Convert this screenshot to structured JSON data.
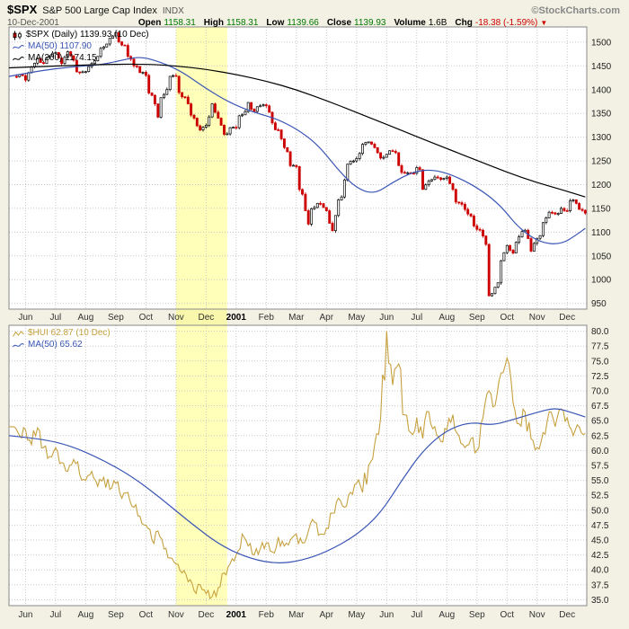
{
  "header": {
    "symbol": "$SPX",
    "name": "S&P 500 Large Cap Index",
    "exchange": "INDX",
    "brand": "©StockCharts.com",
    "date": "10-Dec-2001",
    "quote": {
      "open_label": "Open",
      "open": "1158.31",
      "high_label": "High",
      "high": "1158.31",
      "low_label": "Low",
      "low": "1139.66",
      "close_label": "Close",
      "close": "1139.93",
      "volume_label": "Volume",
      "volume": "1.6B",
      "chg_label": "Chg",
      "chg": "-18.38 (-1.59%)",
      "chg_dir": "▼"
    }
  },
  "colors": {
    "page_bg": "#F2F1E3",
    "up": "#000000",
    "down": "#CC0000",
    "ma50": "#3A55B4",
    "ma200": "#000000",
    "hui": "#C6A13F",
    "band": "#FFFF66",
    "grid": "#C8C8C8",
    "border": "#888888",
    "value_green": "#007700",
    "value_red": "#CC0000"
  },
  "chart_data": [
    {
      "type": "candlestick",
      "symbol": "$SPX",
      "title": "$SPX (Daily) 1139.93 (10 Dec)",
      "legend": [
        "$SPX (Daily) 1139.93 (10 Dec)",
        "MA(50) 1107.90",
        "MA(200) 1174.15"
      ],
      "legend_position": "top-left",
      "grid": true,
      "x_unit": "months, Jun 2000 through 10 Dec 2001",
      "x_labels": [
        "Jun",
        "Jul",
        "Aug",
        "Sep",
        "Oct",
        "Nov",
        "Dec",
        "2001",
        "Feb",
        "Mar",
        "Apr",
        "May",
        "Jun",
        "Jul",
        "Aug",
        "Sep",
        "Oct",
        "Nov",
        "Dec"
      ],
      "x_start": -0.4,
      "x_step": 0.2,
      "ylim": [
        938,
        1532
      ],
      "yticks": [
        "1500",
        "1450",
        "1400",
        "1350",
        "1300",
        "1250",
        "1200",
        "1150",
        "1100",
        "1050",
        "1000",
        "950"
      ],
      "highlight_band_x": [
        5.0,
        6.7
      ],
      "close": [
        1428,
        1432,
        1420,
        1448,
        1465,
        1455,
        1470,
        1478,
        1455,
        1480,
        1462,
        1436,
        1438,
        1455,
        1470,
        1490,
        1508,
        1520,
        1494,
        1470,
        1450,
        1436,
        1430,
        1388,
        1342,
        1390,
        1428,
        1428,
        1385,
        1370,
        1340,
        1315,
        1325,
        1370,
        1340,
        1306,
        1320,
        1320,
        1347,
        1373,
        1354,
        1366,
        1366,
        1330,
        1315,
        1278,
        1240,
        1238,
        1180,
        1117,
        1152,
        1160,
        1145,
        1103,
        1168,
        1210,
        1249,
        1255,
        1285,
        1290,
        1278,
        1256,
        1264,
        1270,
        1240,
        1224,
        1224,
        1236,
        1190,
        1208,
        1216,
        1211,
        1216,
        1190,
        1162,
        1148,
        1134,
        1106,
        1092,
        966,
        984,
        1040,
        1072,
        1056,
        1090,
        1104,
        1060,
        1087,
        1120,
        1142,
        1138,
        1150,
        1145,
        1168,
        1148,
        1140
      ],
      "ma50_points": [
        [
          -0.55,
          1428
        ],
        [
          0.5,
          1440
        ],
        [
          1.5,
          1448
        ],
        [
          2.5,
          1452
        ],
        [
          3.2,
          1462
        ],
        [
          3.8,
          1470
        ],
        [
          4.5,
          1458
        ],
        [
          5.2,
          1438
        ],
        [
          6.0,
          1402
        ],
        [
          6.8,
          1372
        ],
        [
          7.6,
          1352
        ],
        [
          8.4,
          1338
        ],
        [
          9.2,
          1310
        ],
        [
          9.8,
          1278
        ],
        [
          10.4,
          1230
        ],
        [
          11.0,
          1192
        ],
        [
          11.6,
          1180
        ],
        [
          12.2,
          1205
        ],
        [
          12.9,
          1228
        ],
        [
          13.6,
          1232
        ],
        [
          14.4,
          1215
        ],
        [
          15.2,
          1186
        ],
        [
          15.8,
          1155
        ],
        [
          16.4,
          1108
        ],
        [
          17.1,
          1078
        ],
        [
          17.8,
          1074
        ],
        [
          18.3,
          1094
        ],
        [
          18.6,
          1108
        ]
      ],
      "ma200_points": [
        [
          -0.55,
          1446
        ],
        [
          1.0,
          1450
        ],
        [
          2.5,
          1453
        ],
        [
          4.0,
          1454
        ],
        [
          5.0,
          1450
        ],
        [
          6.0,
          1443
        ],
        [
          7.0,
          1432
        ],
        [
          8.0,
          1418
        ],
        [
          9.0,
          1400
        ],
        [
          10.0,
          1377
        ],
        [
          11.0,
          1352
        ],
        [
          12.0,
          1327
        ],
        [
          13.0,
          1301
        ],
        [
          14.0,
          1276
        ],
        [
          15.0,
          1251
        ],
        [
          16.0,
          1226
        ],
        [
          17.0,
          1204
        ],
        [
          18.0,
          1186
        ],
        [
          18.6,
          1174
        ]
      ]
    },
    {
      "type": "line",
      "symbol": "$HUI",
      "title": "$HUI 62.87 (10 Dec)",
      "legend": [
        "$HUI 62.87 (10 Dec)",
        "MA(50) 65.62"
      ],
      "legend_position": "top-left",
      "grid": true,
      "x_unit": "months, Jun 2000 through 10 Dec 2001",
      "x_labels": [
        "Jun",
        "Jul",
        "Aug",
        "Sep",
        "Oct",
        "Nov",
        "Dec",
        "2001",
        "Feb",
        "Mar",
        "Apr",
        "May",
        "Jun",
        "Jul",
        "Aug",
        "Sep",
        "Oct",
        "Nov",
        "Dec"
      ],
      "x_start": -0.4,
      "x_step": 0.2,
      "ylim": [
        34,
        81
      ],
      "yticks": [
        "80.0",
        "77.5",
        "75.0",
        "72.5",
        "70.0",
        "67.5",
        "65.0",
        "62.5",
        "60.0",
        "57.5",
        "55.0",
        "52.5",
        "50.0",
        "47.5",
        "45.0",
        "42.5",
        "40.0",
        "37.5",
        "35.0"
      ],
      "highlight_band_x": [
        5.0,
        6.7
      ],
      "values": [
        64.0,
        62.5,
        63.5,
        61.0,
        63.8,
        60.5,
        59.0,
        60.5,
        58.0,
        56.5,
        58.5,
        56.0,
        55.0,
        56.5,
        54.0,
        55.5,
        53.5,
        54.5,
        52.0,
        53.0,
        50.5,
        49.0,
        47.5,
        45.0,
        46.5,
        43.5,
        42.0,
        41.0,
        39.5,
        38.0,
        36.5,
        37.5,
        36.0,
        35.5,
        37.0,
        39.5,
        41.0,
        42.5,
        46.0,
        44.0,
        42.5,
        43.5,
        44.5,
        43.0,
        45.5,
        44.0,
        45.0,
        46.0,
        44.5,
        46.5,
        48.0,
        46.0,
        47.0,
        49.5,
        52.0,
        50.5,
        53.0,
        54.5,
        53.0,
        57.5,
        61.0,
        65.5,
        80.0,
        71.0,
        74.5,
        66.0,
        63.0,
        65.5,
        62.0,
        66.5,
        64.0,
        61.5,
        63.5,
        66.0,
        62.5,
        60.5,
        62.0,
        60.0,
        65.5,
        70.0,
        67.5,
        73.0,
        75.5,
        68.0,
        64.5,
        66.5,
        62.0,
        60.5,
        63.0,
        66.5,
        64.0,
        67.0,
        65.5,
        62.5,
        64.0,
        62.87
      ],
      "ma50_points": [
        [
          -0.55,
          62.5
        ],
        [
          0.5,
          62.0
        ],
        [
          1.5,
          60.8
        ],
        [
          2.5,
          58.6
        ],
        [
          3.5,
          55.8
        ],
        [
          4.5,
          52.0
        ],
        [
          5.5,
          47.8
        ],
        [
          6.5,
          44.0
        ],
        [
          7.5,
          41.8
        ],
        [
          8.4,
          41.0
        ],
        [
          9.2,
          41.6
        ],
        [
          10.0,
          43.0
        ],
        [
          11.0,
          45.8
        ],
        [
          11.8,
          49.5
        ],
        [
          12.5,
          55.0
        ],
        [
          13.2,
          60.0
        ],
        [
          14.0,
          63.5
        ],
        [
          14.8,
          64.8
        ],
        [
          15.5,
          64.2
        ],
        [
          16.2,
          65.2
        ],
        [
          17.0,
          66.4
        ],
        [
          17.6,
          67.2
        ],
        [
          18.2,
          66.3
        ],
        [
          18.6,
          65.62
        ]
      ]
    }
  ]
}
